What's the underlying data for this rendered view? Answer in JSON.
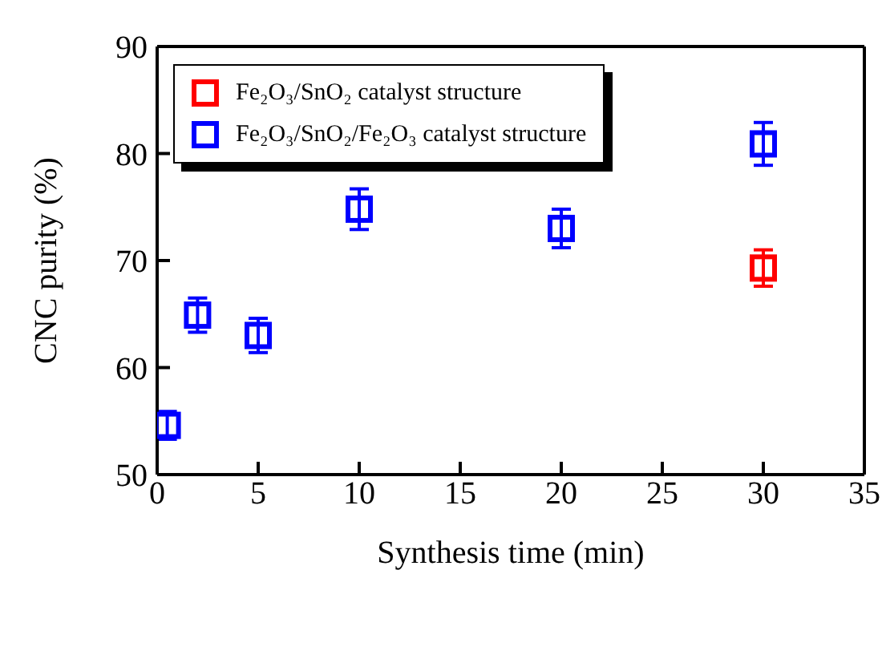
{
  "chart_data": {
    "type": "scatter",
    "xlabel": "Synthesis time (min)",
    "ylabel": "CNC purity (%)",
    "xlim": [
      0,
      35
    ],
    "xticks": [
      0,
      5,
      10,
      15,
      20,
      25,
      30,
      35
    ],
    "ylim": [
      50,
      90
    ],
    "yticks": [
      50,
      60,
      70,
      80,
      90
    ],
    "legend": "top left",
    "marker": "square",
    "series": [
      {
        "name": "Fe₂O₃/SnO₂ catalyst structure",
        "color": "#ff0000",
        "x": [
          30
        ],
        "values": [
          69.3
        ],
        "errors": [
          1.7
        ]
      },
      {
        "name": "Fe₂O₃/SnO₂/Fe₂O₃ catalyst structure",
        "color": "#0000ff",
        "x": [
          0.5,
          2,
          5,
          10,
          20,
          30
        ],
        "values": [
          54.6,
          64.9,
          63.0,
          74.8,
          73.0,
          80.9
        ],
        "errors": [
          1.3,
          1.6,
          1.6,
          1.9,
          1.8,
          2.0
        ]
      }
    ]
  }
}
